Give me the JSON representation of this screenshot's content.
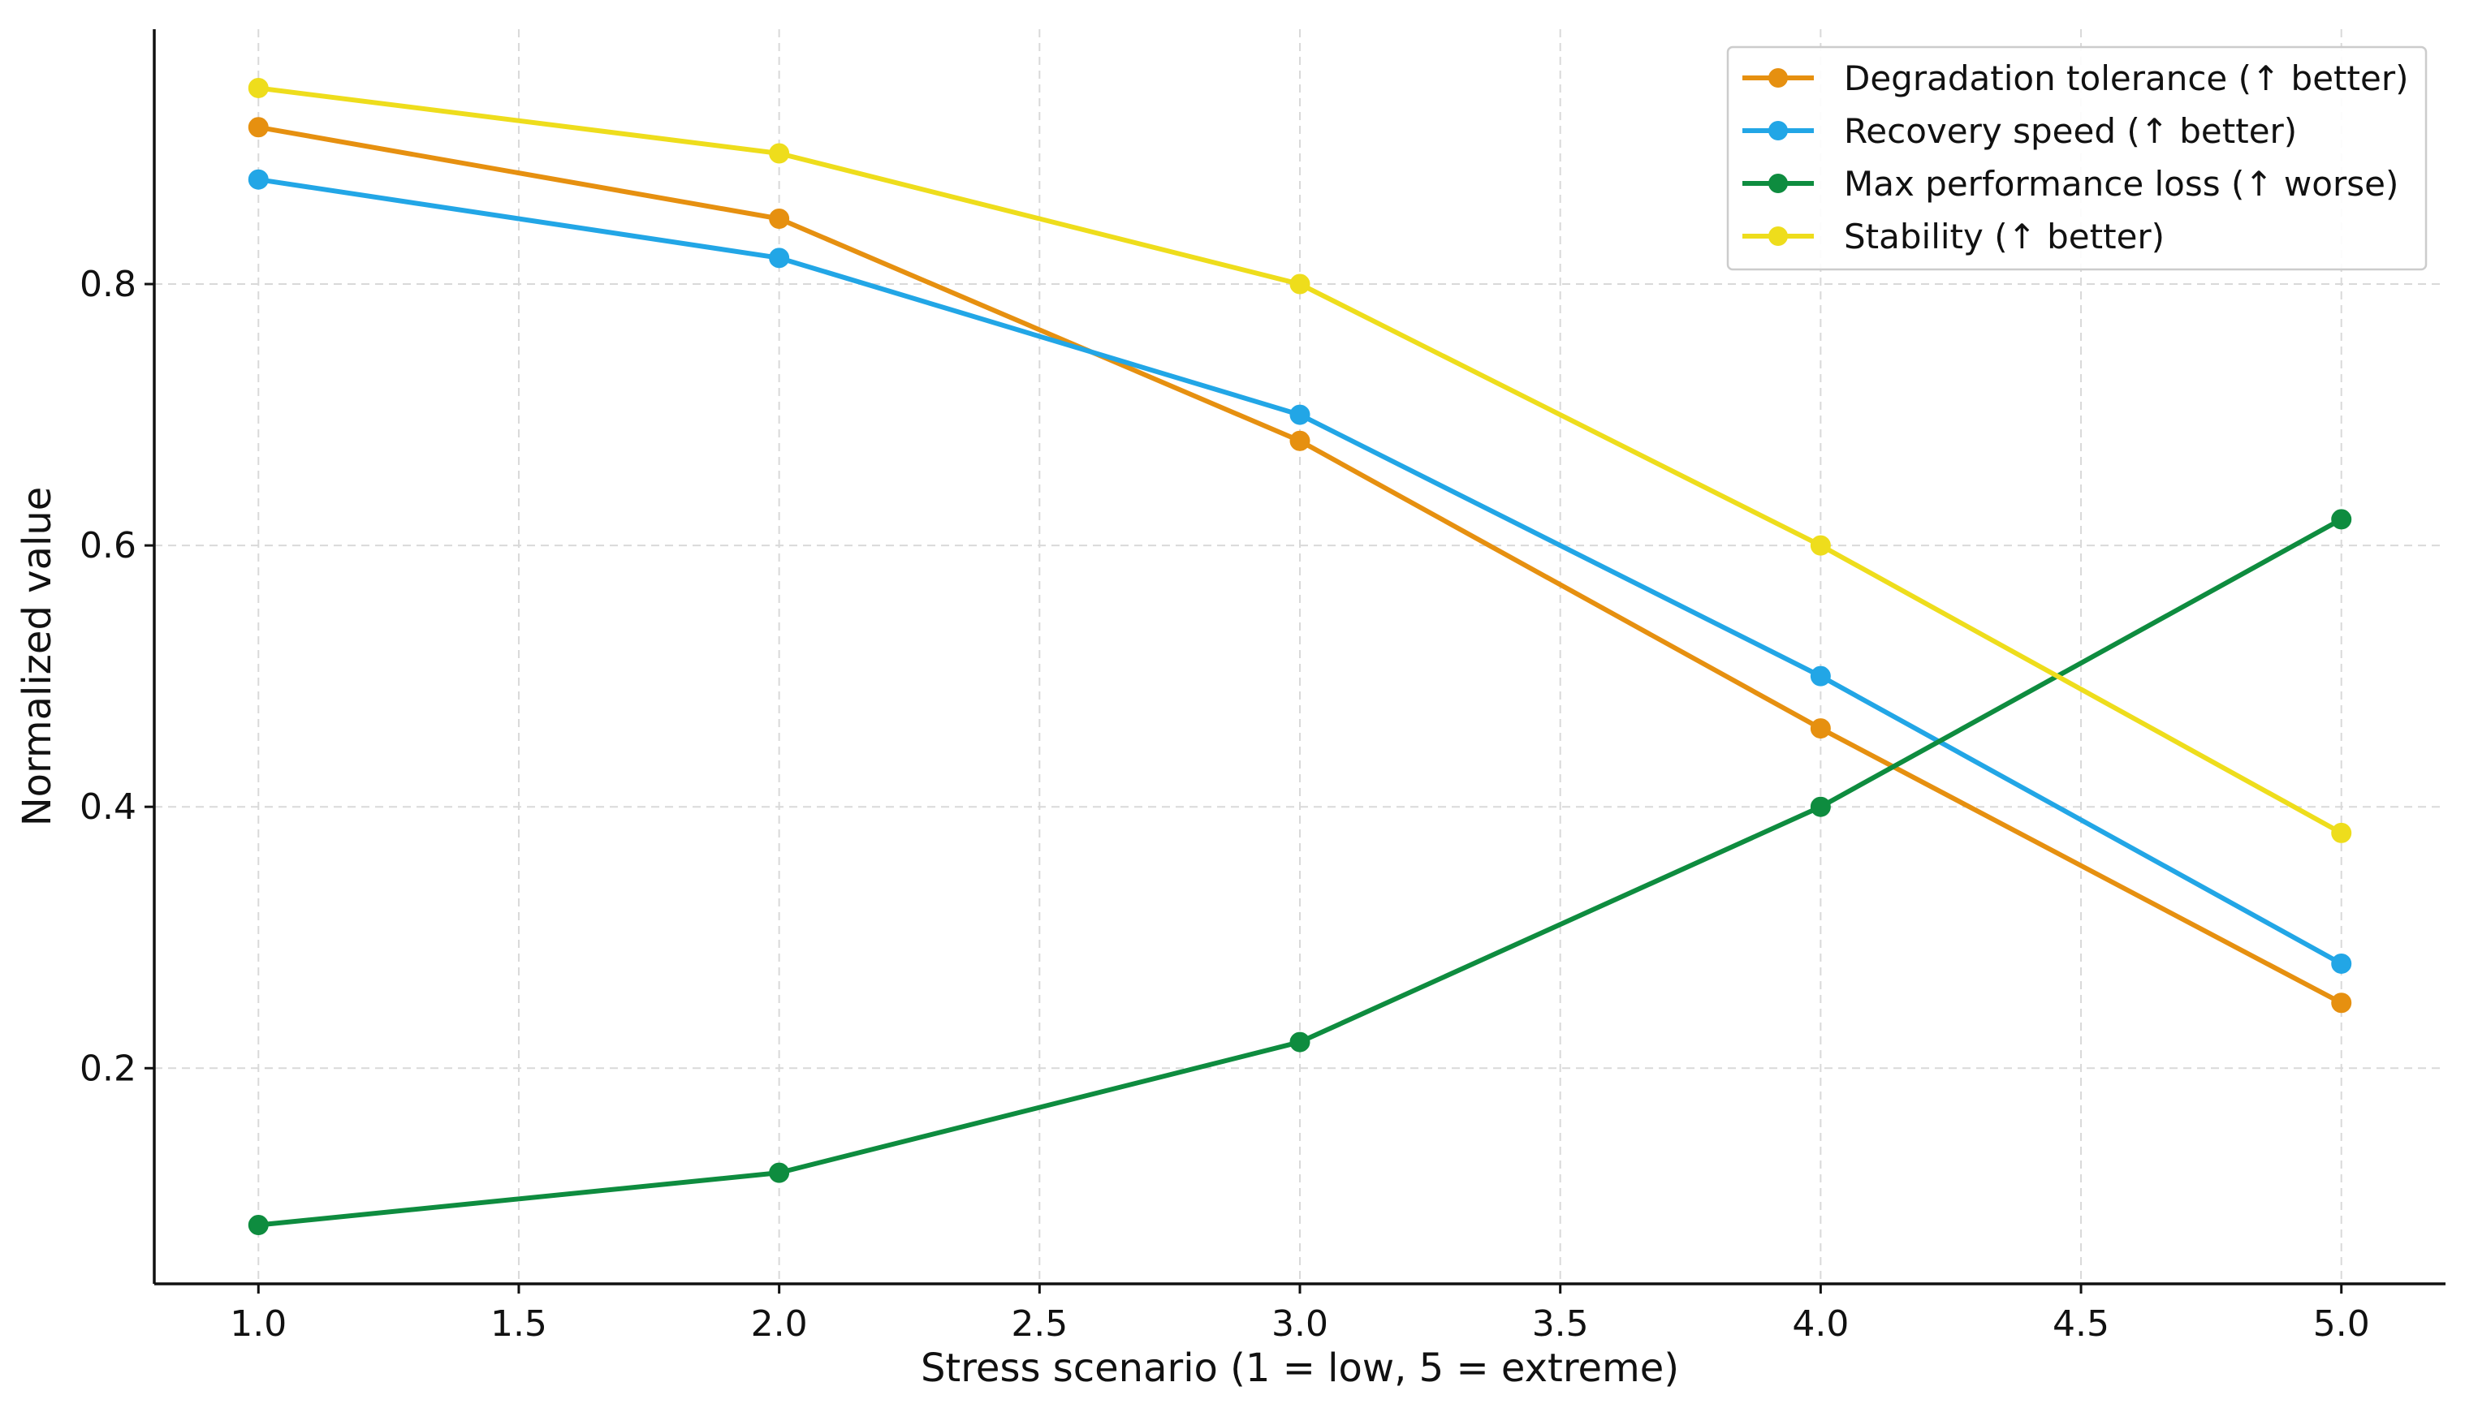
{
  "chart_data": {
    "type": "line",
    "title": "",
    "xlabel": "Stress scenario (1 = low, 5 = extreme)",
    "ylabel": "Normalized value",
    "xlim": [
      0.8,
      5.2
    ],
    "ylim": [
      0.035,
      0.995
    ],
    "xticks": [
      "1.0",
      "1.5",
      "2.0",
      "2.5",
      "3.0",
      "3.5",
      "4.0",
      "4.5",
      "5.0"
    ],
    "yticks": [
      "0.2",
      "0.4",
      "0.6",
      "0.8"
    ],
    "grid": true,
    "legend_position": "top-right",
    "x": [
      1,
      2,
      3,
      4,
      5
    ],
    "series": [
      {
        "name": "Degradation tolerance (↑ better)",
        "color": "#E69010",
        "values": [
          0.92,
          0.85,
          0.68,
          0.46,
          0.25
        ]
      },
      {
        "name": "Recovery speed (↑ better)",
        "color": "#22A6E6",
        "values": [
          0.88,
          0.82,
          0.7,
          0.5,
          0.28
        ]
      },
      {
        "name": "Max performance loss (↑ worse)",
        "color": "#0E8C3F",
        "values": [
          0.08,
          0.12,
          0.22,
          0.4,
          0.62
        ]
      },
      {
        "name": "Stability (↑ better)",
        "color": "#EEDD1C",
        "values": [
          0.95,
          0.9,
          0.8,
          0.6,
          0.38
        ]
      }
    ]
  }
}
